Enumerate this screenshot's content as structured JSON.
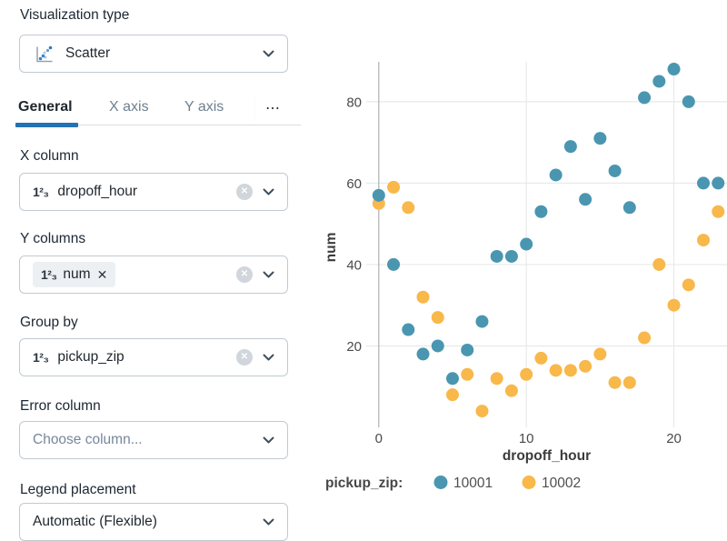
{
  "panel": {
    "viz_type": {
      "label": "Visualization type",
      "value": "Scatter"
    },
    "tabs": [
      {
        "label": "General",
        "active": true
      },
      {
        "label": "X axis",
        "active": false
      },
      {
        "label": "Y axis",
        "active": false
      },
      {
        "label": "⋯",
        "active": false
      }
    ],
    "fields": {
      "x_column": {
        "label": "X column",
        "value": "dropoff_hour",
        "type_icon": "1²₃"
      },
      "y_columns": {
        "label": "Y columns",
        "chip": {
          "type_icon": "1²₃",
          "value": "num"
        }
      },
      "group_by": {
        "label": "Group by",
        "value": "pickup_zip",
        "type_icon": "1²₃"
      },
      "error_column": {
        "label": "Error column",
        "placeholder": "Choose column..."
      },
      "legend_placement": {
        "label": "Legend placement",
        "value": "Automatic (Flexible)"
      }
    }
  },
  "icons": {
    "clear": "✕",
    "remove": "✕"
  },
  "colors": {
    "accent": "#2272b4",
    "series_10001": "#4a96b1",
    "series_10002": "#f8b84a"
  },
  "chart_data": {
    "type": "scatter",
    "xlabel": "dropoff_hour",
    "ylabel": "num",
    "legend_title": "pickup_zip:",
    "legend_position": "bottom",
    "grid": true,
    "xlim": [
      -0.85,
      23.6
    ],
    "ylim": [
      0,
      89.8
    ],
    "x_ticks": [
      0,
      10,
      20
    ],
    "y_ticks": [
      20,
      40,
      60,
      80
    ],
    "series": [
      {
        "name": "10001",
        "color": "#4a96b1",
        "x": [
          0,
          1,
          2,
          3,
          4,
          5,
          6,
          7,
          8,
          9,
          10,
          11,
          12,
          13,
          14,
          15,
          16,
          17,
          18,
          19,
          20,
          21,
          22,
          23
        ],
        "y": [
          57,
          40,
          24,
          18,
          20,
          12,
          19,
          26,
          42,
          42,
          45,
          53,
          62,
          69,
          56,
          71,
          63,
          54,
          81,
          85,
          88,
          80,
          60,
          60
        ]
      },
      {
        "name": "10002",
        "color": "#f8b84a",
        "x": [
          0,
          1,
          2,
          3,
          4,
          5,
          6,
          7,
          8,
          9,
          10,
          11,
          12,
          13,
          14,
          15,
          16,
          17,
          18,
          19,
          20,
          21,
          22,
          23
        ],
        "y": [
          55,
          59,
          54,
          32,
          27,
          8,
          13,
          4,
          12,
          9,
          13,
          17,
          14,
          14,
          15,
          18,
          11,
          11,
          22,
          40,
          30,
          35,
          46,
          53
        ]
      }
    ]
  }
}
